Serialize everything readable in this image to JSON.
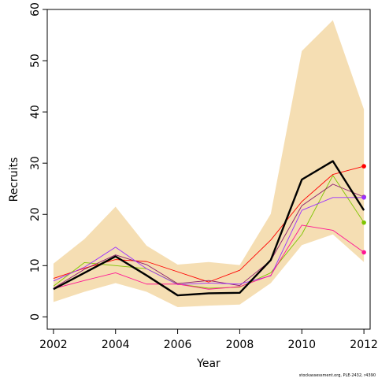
{
  "chart_data": {
    "type": "line",
    "xlabel": "Year",
    "ylabel": "Recruits",
    "caption": "stockassessment.org, PLE-2432, r4390",
    "xlim": [
      2001.8,
      2012.2
    ],
    "ylim": [
      -2.4,
      60
    ],
    "x_ticks": [
      2002,
      2004,
      2006,
      2008,
      2010,
      2012
    ],
    "y_ticks": [
      0,
      10,
      20,
      30,
      40,
      50,
      60
    ],
    "grid": false,
    "x": [
      2002,
      2003,
      2004,
      2005,
      2006,
      2007,
      2008,
      2009,
      2010,
      2011,
      2012
    ],
    "band": {
      "color": "#f5deb3",
      "lower": [
        2.9,
        4.9,
        6.6,
        4.9,
        1.9,
        2.2,
        2.4,
        6.6,
        14.0,
        16.1,
        10.7
      ],
      "upper": [
        10.4,
        15.2,
        21.5,
        13.9,
        10.2,
        10.7,
        10.1,
        20.1,
        51.9,
        57.9,
        40.5
      ]
    },
    "series": [
      {
        "color": "#000000",
        "width": 2.4,
        "values": [
          5.4,
          8.6,
          11.8,
          8.1,
          4.2,
          4.6,
          4.7,
          11.1,
          26.8,
          30.4,
          20.8
        ]
      },
      {
        "color": "#ff0000",
        "width": 0.9,
        "values": [
          7.5,
          9.5,
          11.2,
          10.8,
          8.8,
          6.8,
          9.1,
          15.0,
          22.5,
          27.8,
          29.4
        ],
        "end_marker": true
      },
      {
        "color": "#7fc400",
        "width": 0.9,
        "values": [
          6.0,
          10.6,
          10.0,
          9.4,
          6.4,
          5.6,
          5.8,
          8.6,
          16.1,
          27.6,
          18.4
        ],
        "end_marker": true
      },
      {
        "color": "#8b1a6e",
        "width": 0.9,
        "values": [
          5.6,
          9.3,
          12.1,
          10.2,
          6.5,
          7.1,
          6.1,
          11.0,
          21.7,
          25.9,
          23.4
        ],
        "end_marker": true
      },
      {
        "color": "#9b30ff",
        "width": 0.9,
        "values": [
          7.0,
          9.7,
          13.6,
          9.4,
          6.3,
          6.6,
          6.4,
          8.0,
          20.8,
          23.3,
          23.3
        ],
        "end_marker": true
      },
      {
        "color": "#ff1493",
        "width": 0.9,
        "values": [
          5.5,
          7.1,
          8.6,
          6.4,
          6.4,
          5.4,
          5.9,
          8.1,
          17.9,
          16.9,
          12.6
        ],
        "end_marker": true
      }
    ]
  }
}
